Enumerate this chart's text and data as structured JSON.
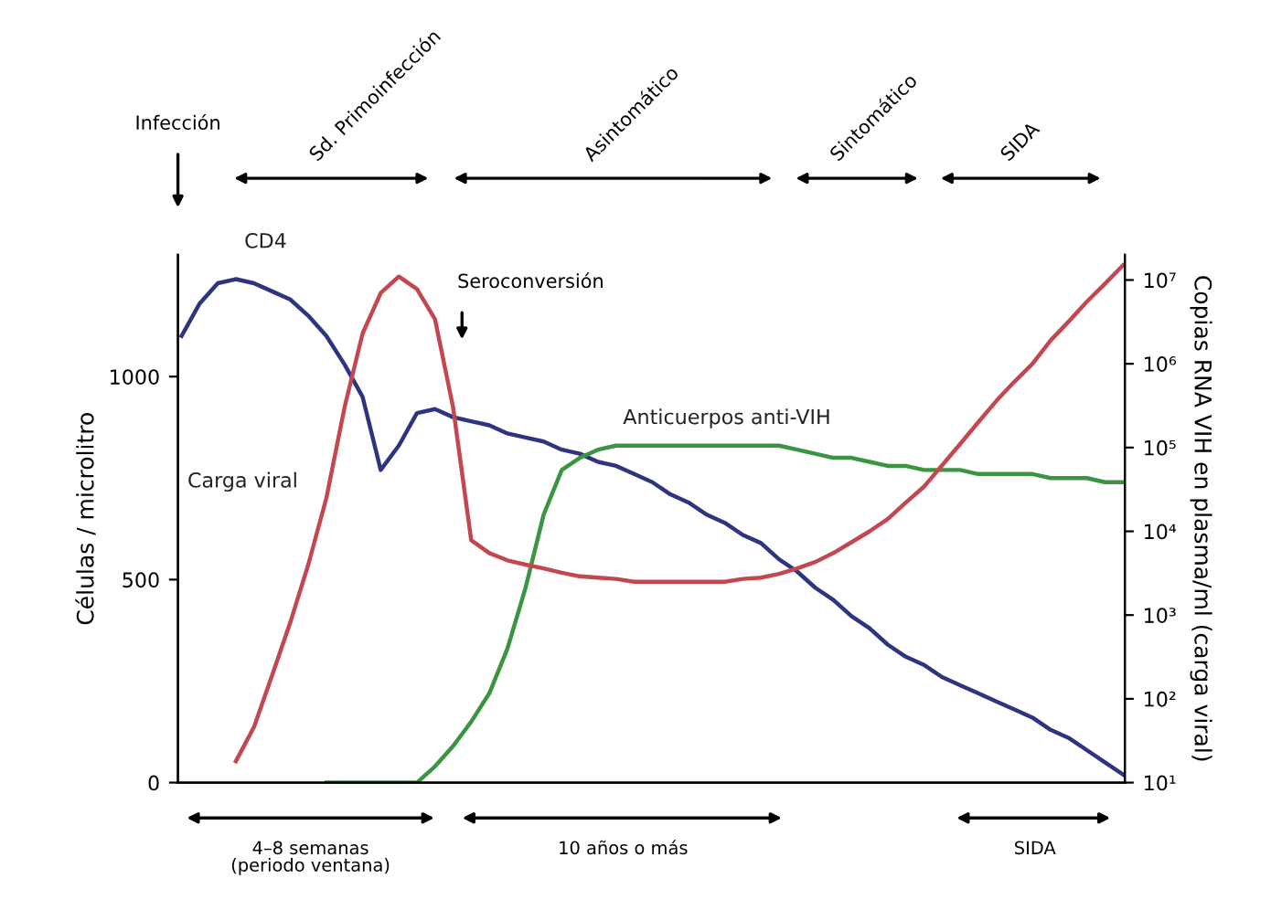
{
  "chart_data": {
    "type": "line",
    "ylabel": "Células / microlitro",
    "y2label": "Copias RNA VIH en plasma/ml (carga viral)",
    "categories": [
      null,
      null,
      null,
      null,
      null,
      null,
      null,
      null,
      null,
      null,
      null,
      null,
      null,
      null,
      null,
      null,
      null,
      null,
      null,
      null,
      null,
      null,
      null,
      null,
      null,
      null,
      null,
      null,
      null,
      null,
      null,
      null,
      null,
      null,
      null,
      null,
      null,
      null,
      null,
      null,
      null,
      null,
      null,
      null,
      null,
      null,
      null,
      null,
      null,
      null,
      null,
      null,
      null
    ],
    "series": [
      {
        "name": "CD4",
        "color": "#2e3580",
        "values": [
          1100,
          1180,
          1230,
          1240,
          1230,
          1210,
          1190,
          1150,
          1100,
          1030,
          950,
          770,
          830,
          910,
          920,
          900,
          890,
          880,
          860,
          850,
          840,
          820,
          810,
          790,
          780,
          760,
          740,
          710,
          690,
          660,
          640,
          610,
          590,
          550,
          520,
          480,
          450,
          410,
          380,
          340,
          310,
          290,
          260,
          240,
          220,
          200,
          180,
          160,
          130,
          110,
          80,
          50,
          20
        ]
      },
      {
        "name": "Carga viral",
        "color": "#c4474f",
        "axis": "y2",
        "values": [
          null,
          null,
          null,
          18,
          46,
          190,
          810,
          4000,
          25000,
          300000,
          2300000,
          7000000,
          11000000,
          7800000,
          3400000,
          300000,
          7800,
          5500,
          4500,
          4000,
          3600,
          3200,
          2900,
          2800,
          2700,
          2500,
          2500,
          2500,
          2500,
          2500,
          2500,
          2700,
          2800,
          3100,
          3600,
          4300,
          5500,
          7400,
          10000,
          14000,
          22000,
          34000,
          61000,
          110000,
          200000,
          360000,
          610000,
          1000000,
          1900000,
          3200000,
          5500000,
          9000000,
          15000000
        ]
      },
      {
        "name": "Anticuerpos anti-VIH",
        "color": "#3a9440",
        "values": [
          null,
          null,
          null,
          null,
          null,
          null,
          null,
          null,
          0,
          0,
          0,
          0,
          0,
          0,
          40,
          90,
          150,
          220,
          330,
          480,
          660,
          770,
          800,
          820,
          830,
          830,
          830,
          830,
          830,
          830,
          830,
          830,
          830,
          830,
          820,
          810,
          800,
          800,
          790,
          780,
          780,
          770,
          770,
          770,
          760,
          760,
          760,
          760,
          750,
          750,
          750,
          740,
          740
        ]
      }
    ],
    "ylim": [
      0,
      1300
    ],
    "yticks": [
      0,
      500,
      1000
    ],
    "y2lim": [
      10,
      20000000
    ],
    "y2ticks": [
      {
        "value": 10,
        "label": "10¹"
      },
      {
        "value": 100,
        "label": "10²"
      },
      {
        "value": 1000,
        "label": "10³"
      },
      {
        "value": 10000,
        "label": "10⁴"
      },
      {
        "value": 100000,
        "label": "10⁵"
      },
      {
        "value": 1000000,
        "label": "10⁶"
      },
      {
        "value": 10000000,
        "label": "10⁷"
      }
    ],
    "log": "y2",
    "grid": false,
    "legend": false,
    "annotations": [
      "Infección",
      "Sd. Primoinfección",
      "Asintomático",
      "Sintomático",
      "SIDA",
      "Seroconversión",
      "4–8 semanas\n(periodo ventana)",
      "10 años o más",
      "SIDA"
    ]
  }
}
